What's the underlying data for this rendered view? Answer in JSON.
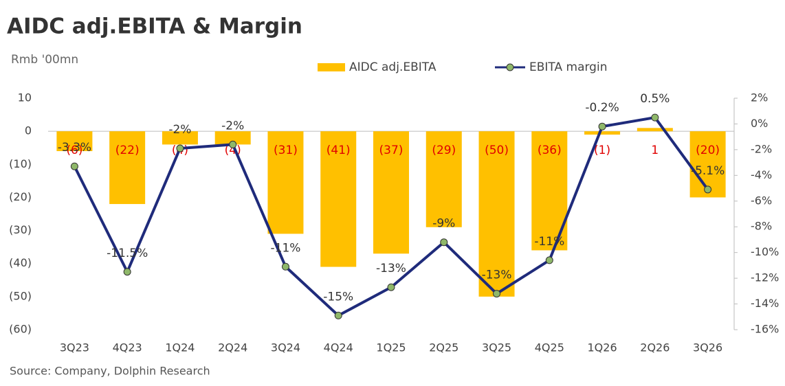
{
  "chart_data": {
    "type": "bar-line",
    "title": "AIDC  adj.EBITA & Margin",
    "subtitle": "Rmb '00mn",
    "source": "Source: Company, Dolphin Research",
    "categories": [
      "3Q23",
      "4Q23",
      "1Q24",
      "2Q24",
      "3Q24",
      "4Q24",
      "1Q25",
      "2Q25",
      "3Q25",
      "4Q25",
      "1Q26",
      "2Q26",
      "3Q26"
    ],
    "series": [
      {
        "name": "AIDC adj.EBITA",
        "type": "bar",
        "color": "#ffc000",
        "values": [
          -6,
          -22,
          -4,
          -4,
          -31,
          -41,
          -37,
          -29,
          -50,
          -36,
          -1,
          1,
          -20
        ],
        "value_labels": [
          "(6)",
          "(22)",
          "(4)",
          "(4)",
          "(31)",
          "(41)",
          "(37)",
          "(29)",
          "(50)",
          "(36)",
          "(1)",
          "1",
          "(20)"
        ]
      },
      {
        "name": "EBITA margin",
        "type": "line",
        "axis": "y2",
        "color": "#1f2b7b",
        "values": [
          -3.3,
          -11.5,
          -1.9,
          -1.6,
          -11.1,
          -14.9,
          -12.7,
          -9.2,
          -13.2,
          -10.6,
          -0.2,
          0.5,
          -5.1
        ],
        "value_labels": [
          "-3.3%",
          "-11.5%",
          "-2%",
          "-2%",
          "-11%",
          "-15%",
          "-13%",
          "-9%",
          "-13%",
          "-11%",
          "-0.2%",
          "0.5%",
          "-5.1%"
        ]
      }
    ],
    "ylim": [
      -60,
      10
    ],
    "yticks": [
      10,
      0,
      {
        "value": -10,
        "label": "(10)"
      },
      {
        "value": -20,
        "label": "(20)"
      },
      {
        "value": -30,
        "label": "(30)"
      },
      {
        "value": -40,
        "label": "(40)"
      },
      {
        "value": -50,
        "label": "(50)"
      },
      {
        "value": -60,
        "label": "(60)"
      }
    ],
    "y2lim": [
      -16,
      2
    ],
    "y2ticks": [
      {
        "value": 2,
        "label": "2%"
      },
      {
        "value": 0,
        "label": "0%"
      },
      {
        "value": -2,
        "label": "-2%"
      },
      {
        "value": -4,
        "label": "-4%"
      },
      {
        "value": -6,
        "label": "-6%"
      },
      {
        "value": -8,
        "label": "-8%"
      },
      {
        "value": -10,
        "label": "-10%"
      },
      {
        "value": -12,
        "label": "-12%"
      },
      {
        "value": -14,
        "label": "-14%"
      },
      {
        "value": -16,
        "label": "-16%"
      }
    ]
  }
}
